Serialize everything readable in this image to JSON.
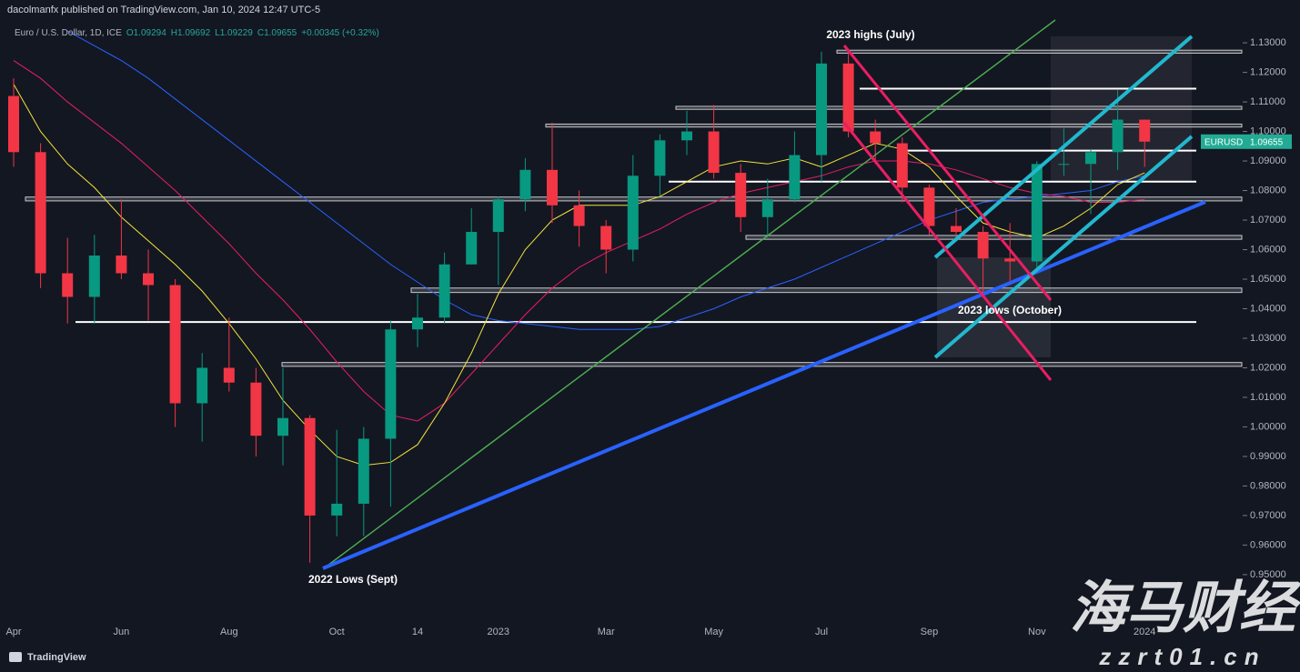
{
  "header": {
    "publisher": "dacolmanfx published on TradingView.com, Jan 10, 2024 12:47 UTC-5",
    "symbol": "Euro / U.S. Dollar, 1D, ICE",
    "ohlc": [
      "O1.09294",
      "H1.09692",
      "L1.09229",
      "C1.09655",
      "+0.00345 (+0.32%)"
    ]
  },
  "chart_data": {
    "type": "candlestick",
    "categories": [
      "Apr",
      null,
      null,
      null,
      "Jun",
      null,
      null,
      null,
      "Aug",
      null,
      null,
      null,
      "Oct",
      null,
      null,
      "14",
      null,
      null,
      "2023",
      null,
      null,
      null,
      "Mar",
      null,
      null,
      null,
      "May",
      null,
      null,
      null,
      "Jul",
      null,
      null,
      null,
      "Sep",
      null,
      null,
      null,
      "Nov",
      null,
      null,
      null,
      "2024"
    ],
    "open": [
      1.112,
      1.093,
      1.052,
      1.044,
      1.058,
      1.052,
      1.048,
      1.008,
      1.02,
      1.015,
      0.997,
      1.003,
      0.97,
      0.974,
      0.996,
      1.033,
      1.037,
      1.055,
      1.066,
      1.077,
      1.087,
      1.075,
      1.068,
      1.06,
      1.085,
      1.097,
      1.1,
      1.086,
      1.071,
      1.077,
      1.092,
      1.123,
      1.1,
      1.096,
      1.081,
      1.068,
      1.066,
      1.057,
      1.056,
      1.089,
      1.089,
      1.093,
      1.104
    ],
    "high": [
      1.118,
      1.096,
      1.064,
      1.065,
      1.077,
      1.06,
      1.05,
      1.025,
      1.037,
      1.02,
      1.02,
      1.004,
      0.999,
      1.0,
      1.036,
      1.045,
      1.059,
      1.074,
      1.078,
      1.091,
      1.103,
      1.08,
      1.07,
      1.092,
      1.099,
      1.107,
      1.109,
      1.089,
      1.084,
      1.1,
      1.127,
      1.128,
      1.104,
      1.098,
      1.082,
      1.074,
      1.068,
      1.069,
      1.09,
      1.101,
      1.094,
      1.114,
      1.104
    ],
    "low": [
      1.088,
      1.047,
      1.035,
      1.035,
      1.05,
      1.036,
      1.0,
      0.995,
      1.012,
      0.99,
      0.987,
      0.954,
      0.963,
      0.963,
      0.973,
      1.027,
      1.035,
      1.055,
      1.048,
      1.073,
      1.069,
      1.061,
      1.052,
      1.056,
      1.078,
      1.092,
      1.084,
      1.066,
      1.064,
      1.076,
      1.083,
      1.098,
      1.089,
      1.076,
      1.065,
      1.063,
      1.045,
      1.048,
      1.052,
      1.085,
      1.072,
      1.087,
      1.088
    ],
    "close": [
      1.093,
      1.052,
      1.044,
      1.058,
      1.052,
      1.048,
      1.008,
      1.02,
      1.015,
      0.997,
      1.003,
      0.97,
      0.974,
      0.996,
      1.033,
      1.037,
      1.055,
      1.066,
      1.077,
      1.087,
      1.075,
      1.068,
      1.06,
      1.085,
      1.097,
      1.1,
      1.086,
      1.071,
      1.077,
      1.092,
      1.123,
      1.1,
      1.096,
      1.081,
      1.068,
      1.066,
      1.057,
      1.056,
      1.089,
      1.089,
      1.093,
      1.104,
      1.09655
    ],
    "colors": {
      "up": "#089981",
      "down": "#f23645"
    },
    "overlays": [
      {
        "color": "#2962ff",
        "values": [
          null,
          null,
          1.134,
          1.129,
          1.124,
          1.118,
          1.111,
          1.104,
          1.097,
          1.09,
          1.083,
          1.076,
          1.069,
          1.062,
          1.055,
          1.049,
          1.043,
          1.038,
          1.036,
          1.035,
          1.034,
          1.033,
          1.033,
          1.033,
          1.034,
          1.037,
          1.04,
          1.044,
          1.047,
          1.05,
          1.054,
          1.058,
          1.062,
          1.066,
          1.07,
          1.073,
          1.076,
          1.077,
          1.078,
          1.079,
          1.08,
          1.083,
          1.085
        ]
      },
      {
        "color": "#e91e63",
        "values": [
          1.124,
          1.118,
          1.11,
          1.103,
          1.096,
          1.088,
          1.08,
          1.071,
          1.062,
          1.052,
          1.043,
          1.033,
          1.022,
          1.012,
          1.004,
          1.002,
          1.008,
          1.018,
          1.028,
          1.038,
          1.047,
          1.054,
          1.059,
          1.063,
          1.067,
          1.072,
          1.076,
          1.079,
          1.081,
          1.083,
          1.085,
          1.088,
          1.09,
          1.09,
          1.089,
          1.087,
          1.084,
          1.081,
          1.079,
          1.078,
          1.076,
          1.076,
          1.077
        ]
      },
      {
        "color": "#f5e23b",
        "values": [
          1.116,
          1.1,
          1.089,
          1.081,
          1.071,
          1.063,
          1.055,
          1.046,
          1.035,
          1.023,
          1.009,
          0.999,
          0.99,
          0.987,
          0.988,
          0.994,
          1.008,
          1.025,
          1.045,
          1.06,
          1.07,
          1.075,
          1.075,
          1.075,
          1.078,
          1.083,
          1.088,
          1.09,
          1.089,
          1.091,
          1.088,
          1.092,
          1.096,
          1.094,
          1.088,
          1.078,
          1.069,
          1.066,
          1.064,
          1.068,
          1.074,
          1.082,
          1.086
        ]
      }
    ],
    "levels": [
      1.1145,
      1.0935,
      1.083,
      1.0355
    ],
    "zones": [
      [
        1.1265,
        1.1275
      ],
      [
        1.1075,
        1.1085
      ],
      [
        1.1015,
        1.1025
      ],
      [
        1.0765,
        1.0778
      ],
      [
        1.0635,
        1.0648
      ],
      [
        1.0455,
        1.047
      ],
      [
        1.0205,
        1.0218
      ]
    ],
    "annotations": [
      "2023 highs (July)",
      "2023 lows (October)",
      "2022 Lows (Sept)"
    ],
    "last_price": {
      "name": "EURUSD",
      "value": 1.09655
    },
    "ylim": [
      0.9352,
      1.1368
    ],
    "yticks": [
      {
        "value": 0.95,
        "label": "0.95000"
      },
      {
        "value": 0.96,
        "label": "0.96000"
      },
      {
        "value": 0.97,
        "label": "0.97000"
      },
      {
        "value": 0.98,
        "label": "0.98000"
      },
      {
        "value": 0.99,
        "label": "0.99000"
      },
      {
        "value": 1.0,
        "label": "1.00000"
      },
      {
        "value": 1.01,
        "label": "1.01000"
      },
      {
        "value": 1.02,
        "label": "1.02000"
      },
      {
        "value": 1.03,
        "label": "1.03000"
      },
      {
        "value": 1.04,
        "label": "1.04000"
      },
      {
        "value": 1.05,
        "label": "1.05000"
      },
      {
        "value": 1.06,
        "label": "1.06000"
      },
      {
        "value": 1.07,
        "label": "1.07000"
      },
      {
        "value": 1.08,
        "label": "1.08000"
      },
      {
        "value": 1.09,
        "label": "1.09000"
      },
      {
        "value": 1.1,
        "label": "1.10000"
      },
      {
        "value": 1.11,
        "label": "1.11000"
      },
      {
        "value": 1.12,
        "label": "1.12000"
      },
      {
        "value": 1.13,
        "label": "1.13000"
      }
    ]
  },
  "footer": {
    "brand": "TradingView",
    "watermark": "海马财经",
    "watermark_url": "zzrt01.cn"
  }
}
